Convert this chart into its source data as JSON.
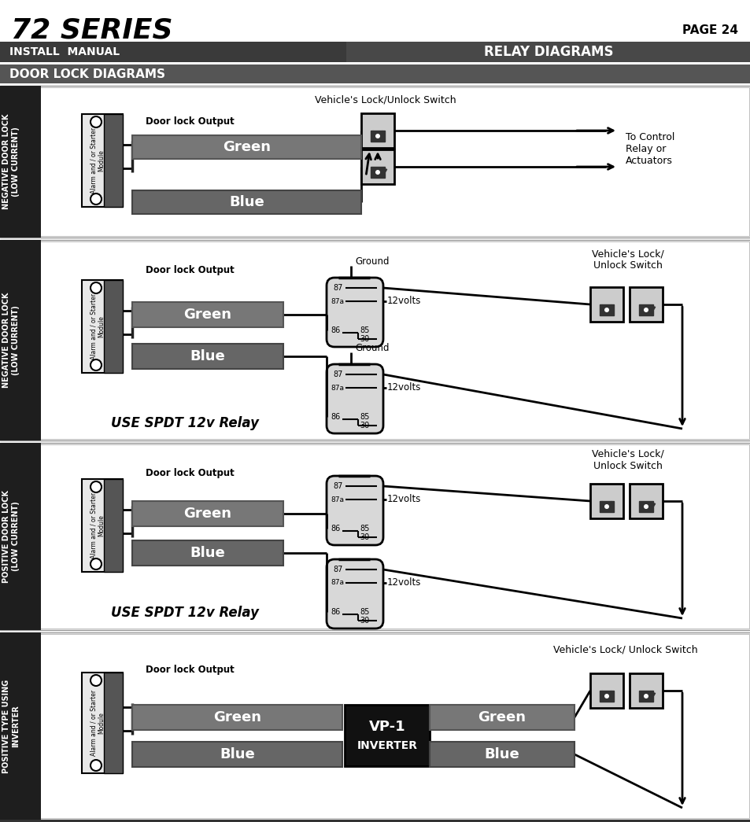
{
  "title": "72 SERIES",
  "page": "PAGE 24",
  "subtitle": "INSTALL  MANUAL",
  "relay_diagrams_label": "RELAY DIAGRAMS",
  "door_lock_label": "DOOR LOCK DIAGRAMS",
  "green_color": "#808080",
  "blue_color": "#707070",
  "green_fill": "#888888",
  "blue_fill": "#777777",
  "dark_sidebar": "#1a1a1a",
  "header_bg": "#3d3d3d",
  "relay_fill": "#e0e0e0",
  "lock_fill": "#dddddd",
  "white": "#ffffff",
  "black": "#000000",
  "light_bg": "#f8f8f8",
  "fig_width": 9.54,
  "fig_height": 10.45
}
